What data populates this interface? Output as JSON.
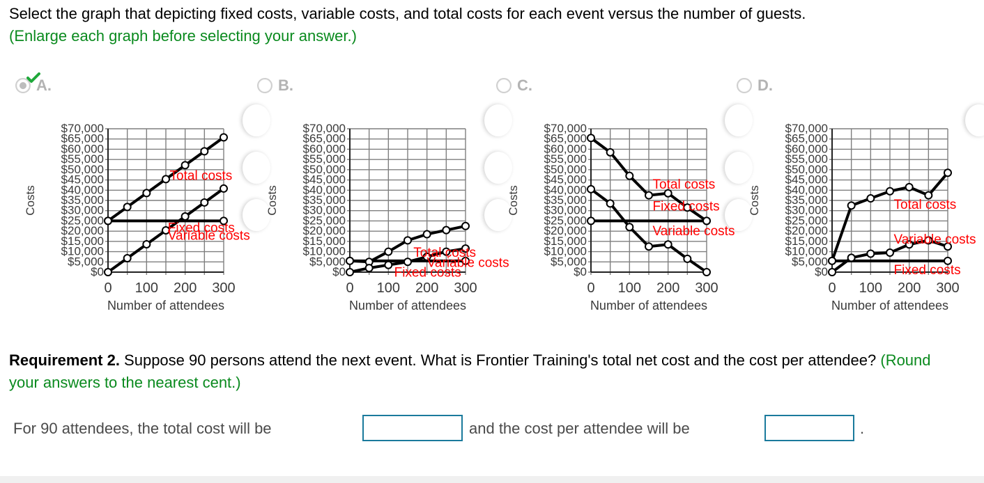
{
  "question": {
    "prompt": "Select the graph that depicting fixed costs, variable costs, and total costs for each event versus the number of guests.",
    "hint": "(Enlarge each graph before selecting your answer.)"
  },
  "options": [
    {
      "letter": "A.",
      "selected": true,
      "status": "correct"
    },
    {
      "letter": "B.",
      "selected": false
    },
    {
      "letter": "C.",
      "selected": false
    },
    {
      "letter": "D.",
      "selected": false
    }
  ],
  "colors": {
    "label_red": "#ff0000",
    "hint_green": "#0a8a1e",
    "input_border": "#1a7a9c",
    "check_green": "#1fa83a",
    "grid": "#808080"
  },
  "chart_data": [
    {
      "id": "A",
      "type": "line",
      "title": "",
      "xlabel": "Number of attendees",
      "ylabel": "Costs",
      "x_ticks": [
        "0",
        "100",
        "200",
        "300"
      ],
      "y_ticks": [
        "$0",
        "$5,000",
        "$10,000",
        "$15,000",
        "$20,000",
        "$25,000",
        "$30,000",
        "$35,000",
        "$40,000",
        "$45,000",
        "$50,000",
        "$55,000",
        "$60,000",
        "$65,000",
        "$70,000"
      ],
      "xlim": [
        0,
        300
      ],
      "ylim": [
        0,
        70000
      ],
      "grid": true,
      "x": [
        0,
        50,
        100,
        150,
        200,
        250,
        300
      ],
      "series": [
        {
          "name": "Total costs",
          "x": [
            0,
            50,
            100,
            150,
            200,
            250,
            300
          ],
          "values": [
            25000,
            31800,
            38600,
            45400,
            52200,
            59000,
            65800
          ],
          "label_pos": [
            160,
            45000
          ]
        },
        {
          "name": "Fixed costs",
          "x": [
            0,
            300
          ],
          "values": [
            25000,
            25000
          ],
          "label_pos": [
            155,
            19500
          ]
        },
        {
          "name": "Variable costs",
          "x": [
            0,
            50,
            100,
            150,
            200,
            250,
            300
          ],
          "values": [
            0,
            6800,
            13600,
            20400,
            27200,
            34000,
            40800
          ],
          "label_pos": [
            155,
            15800
          ]
        }
      ]
    },
    {
      "id": "B",
      "type": "line",
      "title": "",
      "xlabel": "Number of attendees",
      "ylabel": "Costs",
      "x_ticks": [
        "0",
        "100",
        "200",
        "300"
      ],
      "y_ticks": [
        "$0",
        "$5,000",
        "$10,000",
        "$15,000",
        "$20,000",
        "$25,000",
        "$30,000",
        "$35,000",
        "$40,000",
        "$45,000",
        "$50,000",
        "$55,000",
        "$60,000",
        "$65,000",
        "$70,000"
      ],
      "xlim": [
        0,
        300
      ],
      "ylim": [
        0,
        70000
      ],
      "grid": true,
      "series": [
        {
          "name": "Total costs",
          "x": [
            0,
            50,
            100,
            150,
            200,
            250,
            300
          ],
          "values": [
            5500,
            5000,
            10000,
            15500,
            18500,
            20500,
            22500
          ],
          "label_pos": [
            165,
            7500
          ]
        },
        {
          "name": "Variable costs",
          "x": [
            0,
            50,
            100,
            150,
            200,
            250,
            300
          ],
          "values": [
            0,
            2000,
            3500,
            5000,
            7500,
            10000,
            11500
          ],
          "label_pos": [
            200,
            2500
          ]
        },
        {
          "name": "Fixed costs",
          "x": [
            0,
            300
          ],
          "values": [
            5500,
            5500
          ],
          "label_pos": [
            115,
            -2200
          ]
        }
      ]
    },
    {
      "id": "C",
      "type": "line",
      "title": "",
      "xlabel": "Number of attendees",
      "ylabel": "Costs",
      "x_ticks": [
        "0",
        "100",
        "200",
        "300"
      ],
      "y_ticks": [
        "$0",
        "$5,000",
        "$10,000",
        "$15,000",
        "$20,000",
        "$25,000",
        "$30,000",
        "$35,000",
        "$40,000",
        "$45,000",
        "$50,000",
        "$55,000",
        "$60,000",
        "$65,000",
        "$70,000"
      ],
      "xlim": [
        0,
        300
      ],
      "ylim": [
        0,
        70000
      ],
      "grid": true,
      "series": [
        {
          "name": "Total costs",
          "x": [
            0,
            50,
            100,
            150,
            200,
            250,
            300
          ],
          "values": [
            65500,
            58500,
            47000,
            37500,
            38500,
            31500,
            25000
          ],
          "label_pos": [
            160,
            40700
          ]
        },
        {
          "name": "Fixed costs",
          "x": [
            0,
            300
          ],
          "values": [
            25000,
            25000
          ],
          "label_pos": [
            160,
            30000
          ]
        },
        {
          "name": "Variable costs",
          "x": [
            0,
            50,
            100,
            150,
            200,
            250,
            300
          ],
          "values": [
            40500,
            33500,
            22000,
            12500,
            13500,
            6500,
            0
          ],
          "label_pos": [
            160,
            18000
          ]
        }
      ]
    },
    {
      "id": "D",
      "type": "line",
      "title": "",
      "xlabel": "Number of attendees",
      "ylabel": "Costs",
      "x_ticks": [
        "0",
        "100",
        "200",
        "300"
      ],
      "y_ticks": [
        "$0",
        "$5,000",
        "$10,000",
        "$15,000",
        "$20,000",
        "$25,000",
        "$30,000",
        "$35,000",
        "$40,000",
        "$45,000",
        "$50,000",
        "$55,000",
        "$60,000",
        "$65,000",
        "$70,000"
      ],
      "xlim": [
        0,
        300
      ],
      "ylim": [
        0,
        70000
      ],
      "grid": true,
      "series": [
        {
          "name": "Total costs",
          "x": [
            0,
            50,
            100,
            150,
            200,
            250,
            300
          ],
          "values": [
            5500,
            32500,
            36000,
            39500,
            41500,
            37500,
            48500
          ],
          "label_pos": [
            160,
            31000
          ]
        },
        {
          "name": "Variable costs",
          "x": [
            0,
            50,
            100,
            150,
            200,
            250,
            300
          ],
          "values": [
            0,
            7000,
            9000,
            9500,
            13500,
            15500,
            12500
          ],
          "label_pos": [
            160,
            14000
          ]
        },
        {
          "name": "Fixed costs",
          "x": [
            0,
            300
          ],
          "values": [
            5500,
            5500
          ],
          "label_pos": [
            160,
            -1000
          ]
        }
      ]
    }
  ],
  "requirement": {
    "label": "Requirement 2.",
    "text": " Suppose 90 persons attend the next event. What is Frontier Training's total net cost and the cost per attendee?",
    "hint": " (Round your answers to the nearest cent.)"
  },
  "answer": {
    "prefix": "For 90 attendees, the total cost will be",
    "total_cost_value": "",
    "middle": "and the cost per attendee will be",
    "per_attendee_value": "",
    "suffix": "."
  }
}
